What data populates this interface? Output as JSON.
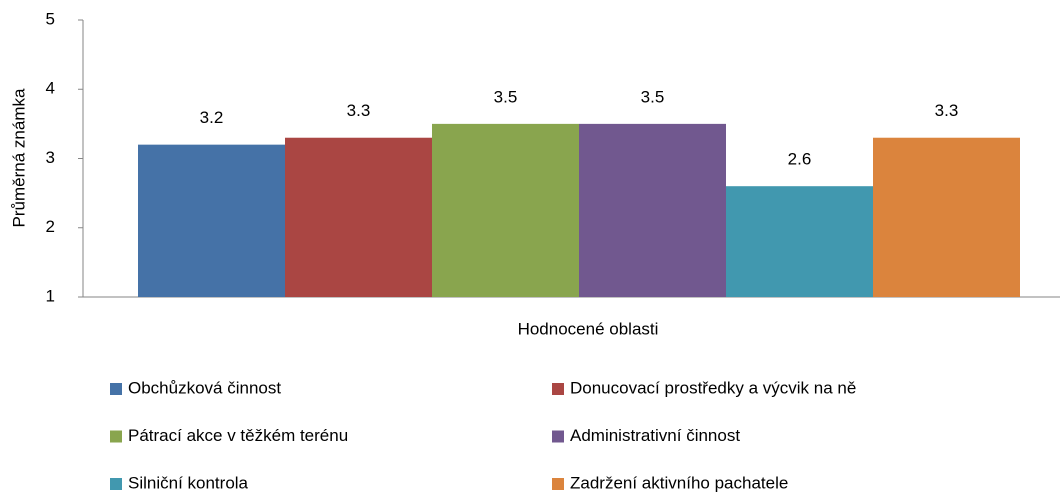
{
  "chart_data": {
    "type": "bar",
    "xlabel": "Hodnocené oblasti",
    "ylabel": "Průměrná známka",
    "ylim": [
      1,
      5
    ],
    "yticks": [
      1,
      2,
      3,
      4,
      5
    ],
    "series": [
      {
        "name": "Obchůzková činnost",
        "color": "#4572a7",
        "values": [
          3.2
        ]
      },
      {
        "name": "Donucovací prostředky a výcvik na ně",
        "color": "#aa4643",
        "values": [
          3.3
        ]
      },
      {
        "name": "Pátrací akce v těžkém terénu",
        "color": "#89a54e",
        "values": [
          3.5
        ]
      },
      {
        "name": "Administrativní činnost",
        "color": "#71588f",
        "values": [
          3.5
        ]
      },
      {
        "name": "Silniční kontrola",
        "color": "#4198af",
        "values": [
          2.6
        ]
      },
      {
        "name": "Zadržení aktivního pachatele",
        "color": "#db843d",
        "values": [
          3.3
        ]
      }
    ]
  }
}
